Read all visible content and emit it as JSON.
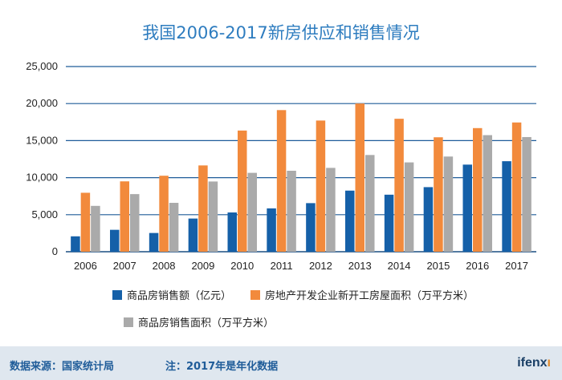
{
  "chart_data": {
    "type": "bar",
    "title": "我国2006-2017新房供应和销售情况",
    "categories": [
      "2006",
      "2007",
      "2008",
      "2009",
      "2010",
      "2011",
      "2012",
      "2013",
      "2014",
      "2015",
      "2016",
      "2017"
    ],
    "series": [
      {
        "name": "商品房销售额（亿元）",
        "color": "#1560a8",
        "values": [
          2080,
          2960,
          2530,
          4480,
          5300,
          5850,
          6560,
          8250,
          7700,
          8720,
          11760,
          12220
        ]
      },
      {
        "name": "房地产开发企业新开工房屋面积（万平方米）",
        "color": "#f28a3c",
        "values": [
          7960,
          9500,
          10260,
          11650,
          16360,
          19120,
          17710,
          20010,
          17950,
          15450,
          16690,
          17450
        ]
      },
      {
        "name": "商品房销售面积（万平方米）",
        "color": "#aaaaaa",
        "values": [
          6190,
          7780,
          6600,
          9480,
          10650,
          10930,
          11320,
          13060,
          12060,
          12850,
          15740,
          15480
        ]
      }
    ],
    "ylim": [
      0,
      25000
    ],
    "yticks": [
      "0",
      "5,000",
      "10,000",
      "15,000",
      "20,000",
      "25,000"
    ],
    "ytick_values": [
      0,
      5000,
      10000,
      15000,
      20000,
      25000
    ],
    "grid": true,
    "legend_position": "bottom"
  },
  "footer": {
    "source": "数据来源：国家统计局",
    "note": "注：2017年是年化数据",
    "brand_main": "ifenx",
    "brand_accent": "ı"
  }
}
